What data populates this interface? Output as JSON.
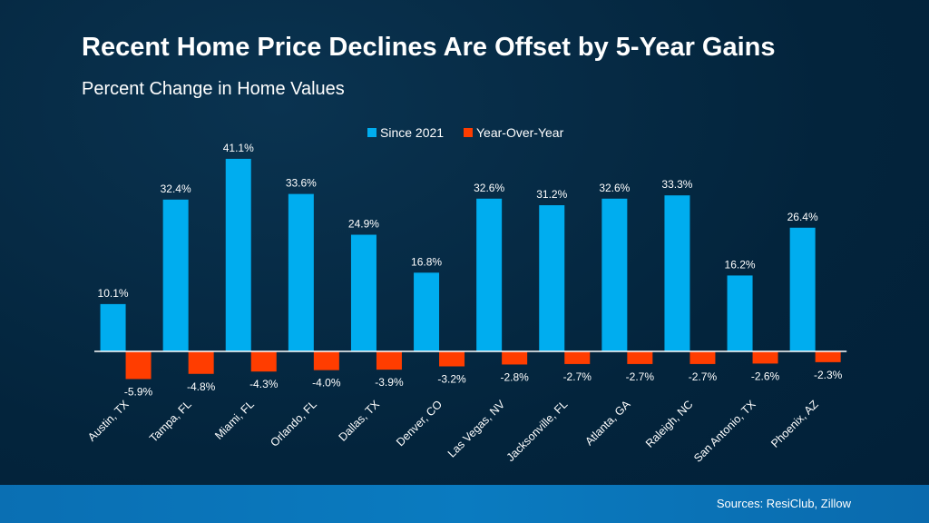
{
  "title": "Recent Home Price Declines Are Offset by 5-Year Gains",
  "subtitle": "Percent Change in Home Values",
  "source": "Sources: ResiClub, Zillow",
  "chart_data": {
    "type": "bar",
    "categories": [
      "Austin, TX",
      "Tampa, FL",
      "Miami, FL",
      "Orlando, FL",
      "Dallas, TX",
      "Denver, CO",
      "Las Vegas, NV",
      "Jacksonville, FL",
      "Atlanta, GA",
      "Raleigh, NC",
      "San Antonio, TX",
      "Phoenix, AZ"
    ],
    "series": [
      {
        "name": "Since 2021",
        "color": "#00adef",
        "values": [
          10.1,
          32.4,
          41.1,
          33.6,
          24.9,
          16.8,
          32.6,
          31.2,
          32.6,
          33.3,
          16.2,
          26.4
        ]
      },
      {
        "name": "Year-Over-Year",
        "color": "#ff3d00",
        "values": [
          -5.9,
          -4.8,
          -4.3,
          -4.0,
          -3.9,
          -3.2,
          -2.8,
          -2.7,
          -2.7,
          -2.7,
          -2.6,
          -2.3
        ]
      }
    ],
    "value_suffix": "%",
    "legend": "top-center",
    "grid": false,
    "ylim": [
      -6,
      42
    ]
  }
}
